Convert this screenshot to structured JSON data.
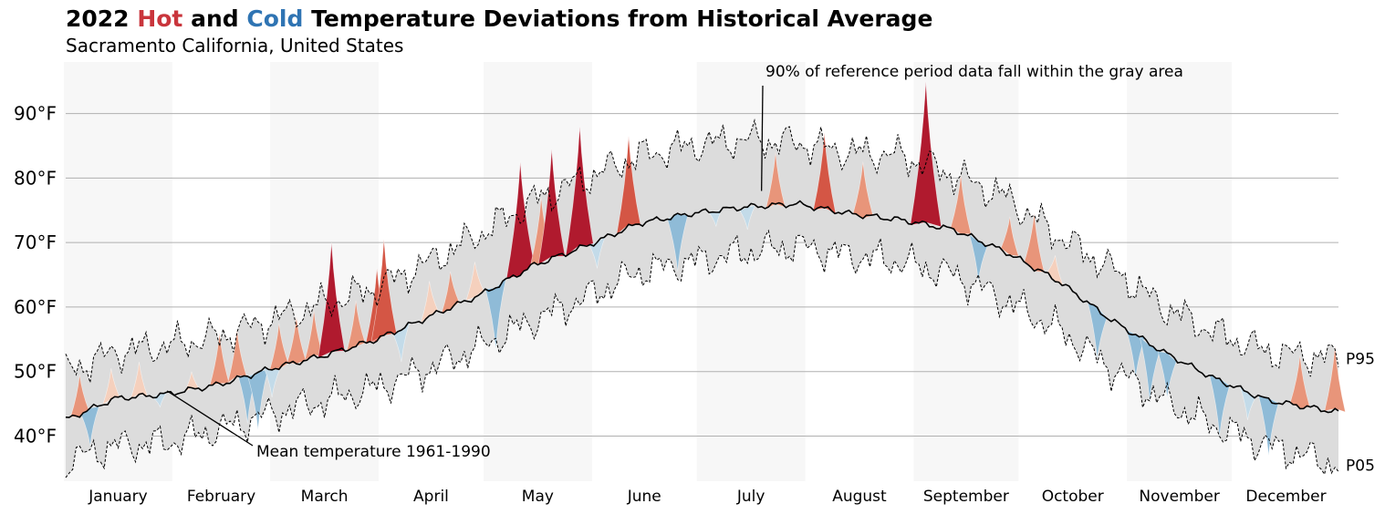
{
  "chart_data": {
    "type": "area",
    "title": {
      "year": "2022",
      "hot": "Hot",
      "and": "and",
      "cold": "Cold",
      "rest": "Temperature Deviations from Historical Average"
    },
    "subtitle": "Sacramento California, United States",
    "xlabel": "",
    "ylabel": "",
    "x_unit": "day of year",
    "x_range": [
      1,
      365
    ],
    "ylim": [
      33,
      98
    ],
    "y_ticks": [
      {
        "value": 40,
        "label": "40°F"
      },
      {
        "value": 50,
        "label": "50°F"
      },
      {
        "value": 60,
        "label": "60°F"
      },
      {
        "value": 70,
        "label": "70°F"
      },
      {
        "value": 80,
        "label": "80°F"
      },
      {
        "value": 90,
        "label": "90°F"
      }
    ],
    "months": [
      {
        "label": "January",
        "start": 1,
        "end": 31
      },
      {
        "label": "February",
        "start": 32,
        "end": 59
      },
      {
        "label": "March",
        "start": 60,
        "end": 90
      },
      {
        "label": "April",
        "start": 91,
        "end": 120
      },
      {
        "label": "May",
        "start": 121,
        "end": 151
      },
      {
        "label": "June",
        "start": 152,
        "end": 181
      },
      {
        "label": "July",
        "start": 182,
        "end": 212
      },
      {
        "label": "August",
        "start": 213,
        "end": 243
      },
      {
        "label": "September",
        "start": 244,
        "end": 273
      },
      {
        "label": "October",
        "start": 274,
        "end": 304
      },
      {
        "label": "November",
        "start": 305,
        "end": 334
      },
      {
        "label": "December",
        "start": 335,
        "end": 365
      }
    ],
    "mean_temperature": {
      "x": [
        1,
        15,
        30,
        45,
        60,
        75,
        90,
        105,
        120,
        135,
        150,
        165,
        180,
        195,
        210,
        225,
        240,
        255,
        270,
        285,
        300,
        315,
        330,
        345,
        365
      ],
      "y": [
        42.5,
        45.8,
        46.5,
        48,
        50.5,
        52.5,
        55,
        58.5,
        62,
        66.5,
        69.5,
        73,
        74.5,
        75.5,
        76,
        74.5,
        73.5,
        72,
        68.5,
        64,
        58,
        53,
        48.8,
        45.5,
        43.7
      ]
    },
    "p95": {
      "x": [
        1,
        15,
        30,
        45,
        60,
        75,
        90,
        105,
        120,
        135,
        150,
        165,
        180,
        195,
        210,
        225,
        240,
        255,
        270,
        285,
        300,
        315,
        330,
        345,
        365
      ],
      "y": [
        50,
        53,
        54,
        55.5,
        58,
        60.5,
        63,
        67,
        71.5,
        76.5,
        80,
        83.5,
        85,
        86,
        85.5,
        84,
        83.5,
        80.5,
        77,
        71,
        66,
        60,
        56,
        53,
        52
      ]
    },
    "p05": {
      "x": [
        1,
        15,
        30,
        45,
        60,
        75,
        90,
        105,
        120,
        135,
        150,
        165,
        180,
        195,
        210,
        225,
        240,
        255,
        270,
        285,
        300,
        315,
        330,
        345,
        365
      ],
      "y": [
        36,
        38.5,
        39,
        41,
        43.5,
        45.5,
        47.5,
        50.5,
        54,
        58,
        61.5,
        65.5,
        67,
        68.5,
        69.5,
        68,
        67,
        65,
        61,
        56.5,
        50.5,
        45.5,
        41.5,
        38.5,
        35.5
      ]
    },
    "deviations": [
      {
        "x": 5,
        "y": 49.5
      },
      {
        "x": 8,
        "y": 38.5
      },
      {
        "x": 14,
        "y": 50.5
      },
      {
        "x": 22,
        "y": 51.5
      },
      {
        "x": 28,
        "y": 44.5
      },
      {
        "x": 37,
        "y": 50
      },
      {
        "x": 45,
        "y": 56
      },
      {
        "x": 50,
        "y": 56.5
      },
      {
        "x": 53,
        "y": 42
      },
      {
        "x": 56,
        "y": 41
      },
      {
        "x": 60,
        "y": 46
      },
      {
        "x": 62,
        "y": 57.5
      },
      {
        "x": 67,
        "y": 58.5
      },
      {
        "x": 72,
        "y": 59.5
      },
      {
        "x": 77,
        "y": 70
      },
      {
        "x": 84,
        "y": 61
      },
      {
        "x": 90,
        "y": 66
      },
      {
        "x": 92,
        "y": 70.5
      },
      {
        "x": 97,
        "y": 51.5
      },
      {
        "x": 105,
        "y": 64
      },
      {
        "x": 111,
        "y": 65.5
      },
      {
        "x": 118,
        "y": 67
      },
      {
        "x": 124,
        "y": 53.5
      },
      {
        "x": 131,
        "y": 82.5
      },
      {
        "x": 137,
        "y": 77
      },
      {
        "x": 140,
        "y": 84.5
      },
      {
        "x": 148,
        "y": 88
      },
      {
        "x": 153,
        "y": 66
      },
      {
        "x": 162,
        "y": 86.5
      },
      {
        "x": 176,
        "y": 65.5
      },
      {
        "x": 187,
        "y": 72.5
      },
      {
        "x": 196,
        "y": 72
      },
      {
        "x": 204,
        "y": 84
      },
      {
        "x": 218,
        "y": 87
      },
      {
        "x": 229,
        "y": 82.5
      },
      {
        "x": 247,
        "y": 95
      },
      {
        "x": 257,
        "y": 80.5
      },
      {
        "x": 262,
        "y": 64
      },
      {
        "x": 271,
        "y": 74
      },
      {
        "x": 278,
        "y": 74.5
      },
      {
        "x": 284,
        "y": 68
      },
      {
        "x": 296,
        "y": 52
      },
      {
        "x": 307,
        "y": 49
      },
      {
        "x": 311,
        "y": 45.5
      },
      {
        "x": 316,
        "y": 46
      },
      {
        "x": 331,
        "y": 40
      },
      {
        "x": 339,
        "y": 42.5
      },
      {
        "x": 345,
        "y": 37
      },
      {
        "x": 354,
        "y": 52.5
      },
      {
        "x": 364,
        "y": 54
      }
    ],
    "annotations": [
      {
        "text": "90% of reference period data fall within the gray area",
        "x": 200,
        "y": 78
      },
      {
        "text": "Mean temperature 1961-1990",
        "x": 30,
        "y": 47
      }
    ],
    "series_labels": {
      "p95": "P95",
      "p05": "P05"
    },
    "legend": "none",
    "colors": {
      "hot": "#c9353c",
      "cold": "#2f74b3",
      "band": "#dcdcdc",
      "month_shade": "#f7f7f7",
      "grid": "#b0b0b0",
      "mean_line": "#000000"
    }
  }
}
